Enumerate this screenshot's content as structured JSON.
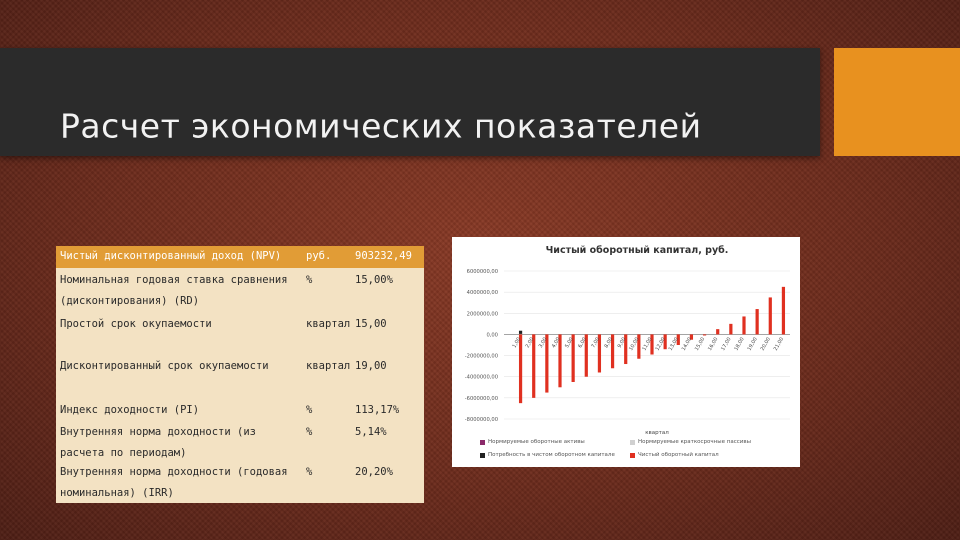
{
  "slide": {
    "title": "Расчет экономических показателей",
    "colors": {
      "title_bar": "#2b2b2b",
      "accent": "#e8911f",
      "table_header": "#e19c36",
      "table_body": "#f3e2c3",
      "bar": "#e03020"
    }
  },
  "table": {
    "rows": [
      {
        "name": "Чистый дисконтированный доход (NPV)",
        "unit": "руб.",
        "value": "903232,49"
      },
      {
        "name": "Номинальная годовая ставка сравнения (дисконтирования) (RD)",
        "unit": "%",
        "value": "15,00%"
      },
      {
        "name": "Простой срок окупаемости",
        "unit": "квартал",
        "value": "15,00"
      },
      {
        "name": "Дисконтированный срок окупаемости",
        "unit": "квартал",
        "value": "19,00"
      },
      {
        "name": "Индекс доходности (PI)",
        "unit": "%",
        "value": "113,17%"
      },
      {
        "name": "Внутренняя норма доходности (из расчета по периодам)",
        "unit": "%",
        "value": "5,14%"
      },
      {
        "name": "Внутренняя норма доходности (годовая номинальная) (IRR)",
        "unit": "%",
        "value": "20,20%"
      }
    ]
  },
  "chart_data": {
    "type": "bar",
    "title": "Чистый оборотный капитал, руб.",
    "xlabel": "квартал",
    "ylabel": "",
    "ylim": [
      -8000000,
      6000000
    ],
    "y_ticks": [
      -8000000,
      -6000000,
      -4000000,
      -2000000,
      0,
      2000000,
      4000000,
      6000000
    ],
    "y_tick_labels": [
      "-8000000,00",
      "-6000000,00",
      "-4000000,00",
      "-2000000,00",
      "0,00",
      "2000000,00",
      "4000000,00",
      "6000000,00"
    ],
    "categories": [
      "1,00",
      "2,00",
      "3,00",
      "4,00",
      "5,00",
      "6,00",
      "7,00",
      "8,00",
      "9,00",
      "10,00",
      "11,00",
      "12,00",
      "13,00",
      "14,00",
      "15,00",
      "16,00",
      "17,00",
      "18,00",
      "19,00",
      "20,00",
      "21,00"
    ],
    "series": [
      {
        "name": "Чистый оборотный капитал",
        "color": "#e03020",
        "values": [
          -6500000,
          -6000000,
          -5500000,
          -5000000,
          -4500000,
          -4000000,
          -3600000,
          -3200000,
          -2800000,
          -2300000,
          -1900000,
          -1400000,
          -1000000,
          -500000,
          -100000,
          500000,
          1000000,
          1700000,
          2400000,
          3500000,
          4500000
        ]
      }
    ],
    "marker": {
      "x": "1,00",
      "value": 200000,
      "color": "#222222"
    },
    "legend": [
      {
        "label": "Нормируемые оборотные активы",
        "color": "#8b2a6a"
      },
      {
        "label": "Нормируемые краткосрочные пассивы",
        "color": "#d0d0d0"
      },
      {
        "label": "Потребность в чистом оборотном капитале",
        "color": "#222222"
      },
      {
        "label": "Чистый оборотный капитал",
        "color": "#e03020"
      }
    ]
  }
}
